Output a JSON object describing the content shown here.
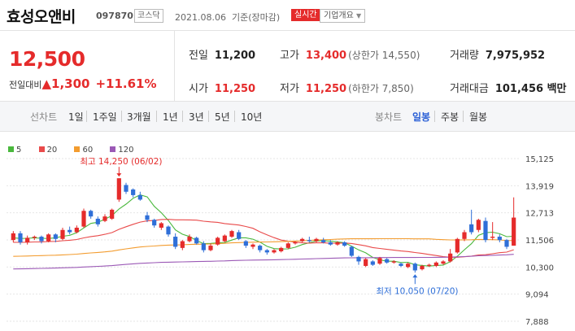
{
  "header": {
    "name": "효성오앤비",
    "code": "097870",
    "market": "코스닥",
    "date": "2021.08.06",
    "basis": "기준(장마감)",
    "live_badge": "실시간",
    "info_button": "기업개요"
  },
  "quote": {
    "price": "12,500",
    "change_label": "전일대비",
    "change_amount": "1,300",
    "change_pct": "+11.61%",
    "prev_close": {
      "label": "전일",
      "value": "11,200"
    },
    "high": {
      "label": "고가",
      "value": "13,400",
      "note": "(상한가 14,550)"
    },
    "volume": {
      "label": "거래량",
      "value": "7,975,952"
    },
    "open": {
      "label": "시가",
      "value": "11,250"
    },
    "low": {
      "label": "저가",
      "value": "11,250",
      "note": "(하한가 7,850)"
    },
    "amount": {
      "label": "거래대금",
      "value": "101,456 백만"
    }
  },
  "toolbar": {
    "line_label": "선차트",
    "periods": [
      "1일",
      "1주일",
      "3개월",
      "1년",
      "3년",
      "5년",
      "10년"
    ],
    "candle_label": "봉차트",
    "candles": [
      "일봉",
      "주봉",
      "월봉"
    ],
    "active_candle": "일봉"
  },
  "colors": {
    "up": "#e52b2b",
    "down": "#2f6fd8",
    "ma5": "#49b83c",
    "ma20": "#e94a4a",
    "ma60": "#f39c2f",
    "ma120": "#9b59b6"
  },
  "chart_data": {
    "type": "candlestick",
    "legend": [
      "5",
      "20",
      "60",
      "120"
    ],
    "y_ticks": [
      "15,125",
      "13,919",
      "12,713",
      "11,506",
      "10,300",
      "9,094",
      "7,888"
    ],
    "ylim": [
      7888,
      15125
    ],
    "annotations": {
      "max": {
        "label": "최고 14,250 (06/02)",
        "value": 14250
      },
      "min": {
        "label": "최저 10,050 (07/20)",
        "value": 10050
      }
    },
    "candles": [
      {
        "o": 11500,
        "c": 11800,
        "h": 11900,
        "l": 11400
      },
      {
        "o": 11800,
        "c": 11400,
        "h": 11900,
        "l": 11300
      },
      {
        "o": 11400,
        "c": 11600,
        "h": 11700,
        "l": 11300
      },
      {
        "o": 11600,
        "c": 11650,
        "h": 11700,
        "l": 11500
      },
      {
        "o": 11650,
        "c": 11450,
        "h": 11700,
        "l": 11350
      },
      {
        "o": 11450,
        "c": 11750,
        "h": 11800,
        "l": 11400
      },
      {
        "o": 11750,
        "c": 11550,
        "h": 11800,
        "l": 11400
      },
      {
        "o": 11550,
        "c": 11950,
        "h": 12050,
        "l": 11500
      },
      {
        "o": 11950,
        "c": 11850,
        "h": 12100,
        "l": 11750
      },
      {
        "o": 11850,
        "c": 12050,
        "h": 12150,
        "l": 11800
      },
      {
        "o": 12100,
        "c": 12800,
        "h": 12900,
        "l": 12050
      },
      {
        "o": 12800,
        "c": 12550,
        "h": 12850,
        "l": 12450
      },
      {
        "o": 12450,
        "c": 12200,
        "h": 12550,
        "l": 12100
      },
      {
        "o": 12350,
        "c": 12550,
        "h": 12650,
        "l": 12300
      },
      {
        "o": 12450,
        "c": 12850,
        "h": 12900,
        "l": 12400
      },
      {
        "o": 13300,
        "c": 14250,
        "h": 14250,
        "l": 13200
      },
      {
        "o": 13950,
        "c": 13650,
        "h": 14050,
        "l": 13550
      },
      {
        "o": 13750,
        "c": 13500,
        "h": 13800,
        "l": 13400
      },
      {
        "o": 13500,
        "c": 13300,
        "h": 13650,
        "l": 13250
      },
      {
        "o": 12600,
        "c": 12400,
        "h": 12750,
        "l": 12300
      },
      {
        "o": 12400,
        "c": 12150,
        "h": 12450,
        "l": 12050
      },
      {
        "o": 12050,
        "c": 12250,
        "h": 12300,
        "l": 11950
      },
      {
        "o": 12100,
        "c": 11750,
        "h": 12150,
        "l": 11650
      },
      {
        "o": 11650,
        "c": 11200,
        "h": 11800,
        "l": 11100
      },
      {
        "o": 11150,
        "c": 11450,
        "h": 11500,
        "l": 11050
      },
      {
        "o": 11450,
        "c": 11650,
        "h": 11750,
        "l": 11400
      },
      {
        "o": 11600,
        "c": 11350,
        "h": 11650,
        "l": 11300
      },
      {
        "o": 11350,
        "c": 11050,
        "h": 11450,
        "l": 10950
      },
      {
        "o": 11050,
        "c": 11250,
        "h": 11350,
        "l": 11000
      },
      {
        "o": 11300,
        "c": 11600,
        "h": 11650,
        "l": 11250
      },
      {
        "o": 11450,
        "c": 11700,
        "h": 11750,
        "l": 11400
      },
      {
        "o": 11650,
        "c": 11900,
        "h": 11950,
        "l": 11600
      },
      {
        "o": 11850,
        "c": 11550,
        "h": 11950,
        "l": 11500
      },
      {
        "o": 11450,
        "c": 11250,
        "h": 11500,
        "l": 11150
      },
      {
        "o": 11200,
        "c": 11300,
        "h": 11350,
        "l": 11100
      },
      {
        "o": 11250,
        "c": 11050,
        "h": 11300,
        "l": 10950
      },
      {
        "o": 11050,
        "c": 10950,
        "h": 11100,
        "l": 10850
      },
      {
        "o": 10950,
        "c": 11050,
        "h": 11100,
        "l": 10900
      },
      {
        "o": 11000,
        "c": 11150,
        "h": 11200,
        "l": 10950
      },
      {
        "o": 11150,
        "c": 11350,
        "h": 11400,
        "l": 11100
      },
      {
        "o": 11350,
        "c": 11400,
        "h": 11450,
        "l": 11300
      },
      {
        "o": 11450,
        "c": 11550,
        "h": 11600,
        "l": 11400
      },
      {
        "o": 11500,
        "c": 11450,
        "h": 11650,
        "l": 11400
      },
      {
        "o": 11450,
        "c": 11550,
        "h": 11600,
        "l": 11400
      },
      {
        "o": 11500,
        "c": 11400,
        "h": 11600,
        "l": 11350
      },
      {
        "o": 11400,
        "c": 11300,
        "h": 11500,
        "l": 11250
      },
      {
        "o": 11300,
        "c": 11400,
        "h": 11450,
        "l": 11250
      },
      {
        "o": 11400,
        "c": 11250,
        "h": 11450,
        "l": 11200
      },
      {
        "o": 11200,
        "c": 10800,
        "h": 11250,
        "l": 10750
      },
      {
        "o": 10750,
        "c": 10550,
        "h": 10800,
        "l": 10400
      },
      {
        "o": 10350,
        "c": 10650,
        "h": 10700,
        "l": 10300
      },
      {
        "o": 10550,
        "c": 10400,
        "h": 10600,
        "l": 10350
      },
      {
        "o": 10450,
        "c": 10700,
        "h": 10750,
        "l": 10400
      },
      {
        "o": 10650,
        "c": 10500,
        "h": 10700,
        "l": 10450
      },
      {
        "o": 10500,
        "c": 10550,
        "h": 10600,
        "l": 10450
      },
      {
        "o": 10450,
        "c": 10350,
        "h": 10500,
        "l": 10300
      },
      {
        "o": 10300,
        "c": 10450,
        "h": 10500,
        "l": 10250
      },
      {
        "o": 10450,
        "c": 10150,
        "h": 10500,
        "l": 10050
      },
      {
        "o": 10200,
        "c": 10350,
        "h": 10400,
        "l": 10150
      },
      {
        "o": 10350,
        "c": 10400,
        "h": 10450,
        "l": 10300
      },
      {
        "o": 10350,
        "c": 10500,
        "h": 10550,
        "l": 10300
      },
      {
        "o": 10450,
        "c": 10550,
        "h": 10600,
        "l": 10400
      },
      {
        "o": 10550,
        "c": 10900,
        "h": 11100,
        "l": 10500
      },
      {
        "o": 10950,
        "c": 11550,
        "h": 11600,
        "l": 10900
      },
      {
        "o": 11550,
        "c": 11850,
        "h": 11950,
        "l": 11450
      },
      {
        "o": 12200,
        "c": 11850,
        "h": 12850,
        "l": 11750
      },
      {
        "o": 11950,
        "c": 12400,
        "h": 12450,
        "l": 11850
      },
      {
        "o": 12350,
        "c": 11500,
        "h": 12500,
        "l": 11400
      },
      {
        "o": 11600,
        "c": 11650,
        "h": 12300,
        "l": 11500
      },
      {
        "o": 11650,
        "c": 11500,
        "h": 11750,
        "l": 11400
      },
      {
        "o": 11500,
        "c": 11200,
        "h": 11550,
        "l": 11100
      },
      {
        "o": 11250,
        "c": 12500,
        "h": 13400,
        "l": 11250
      }
    ]
  }
}
